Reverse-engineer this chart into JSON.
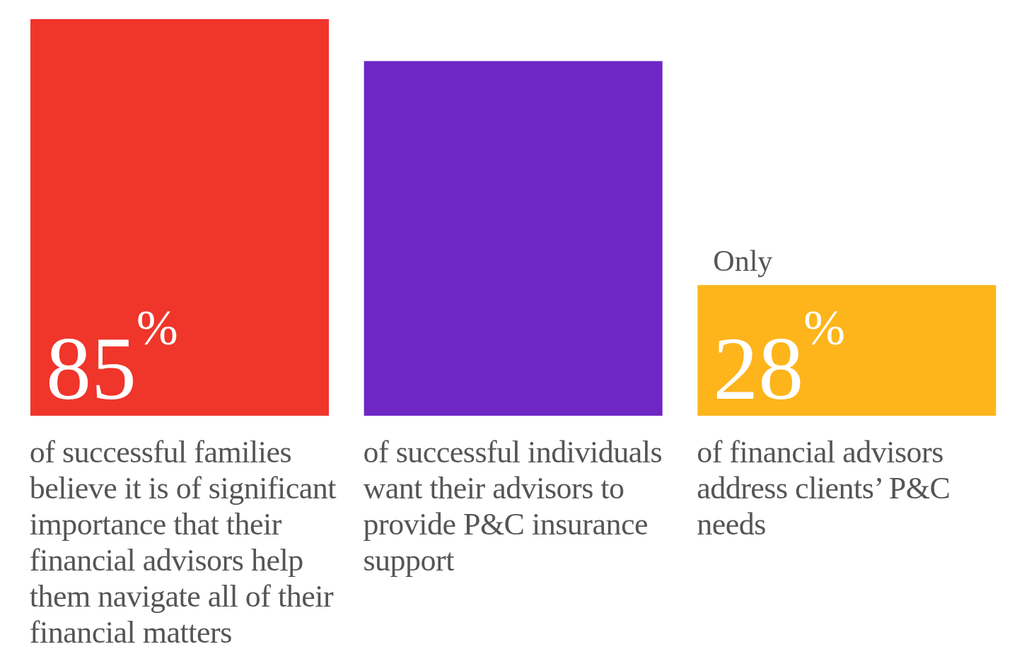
{
  "chart_data": {
    "type": "bar",
    "categories": [
      "of successful families believe it is of significant importance that their financial advisors help them navigate all of their financial matters",
      "of successful individuals want their advisors to provide P&C insurance support",
      "of financial advisors address clients’ P&C needs"
    ],
    "values": [
      85,
      76,
      28
    ],
    "colors": [
      "#f0352b",
      "#6e27c5",
      "#fdb51b"
    ],
    "value_labels": [
      "85$^{%}$",
      null,
      "28$^{%}$"
    ],
    "annotations": [
      {
        "text": "Only",
        "x": "of financial advisors address clients’ P&C needs",
        "y": 28
      }
    ],
    "grid": false,
    "legend": false
  }
}
